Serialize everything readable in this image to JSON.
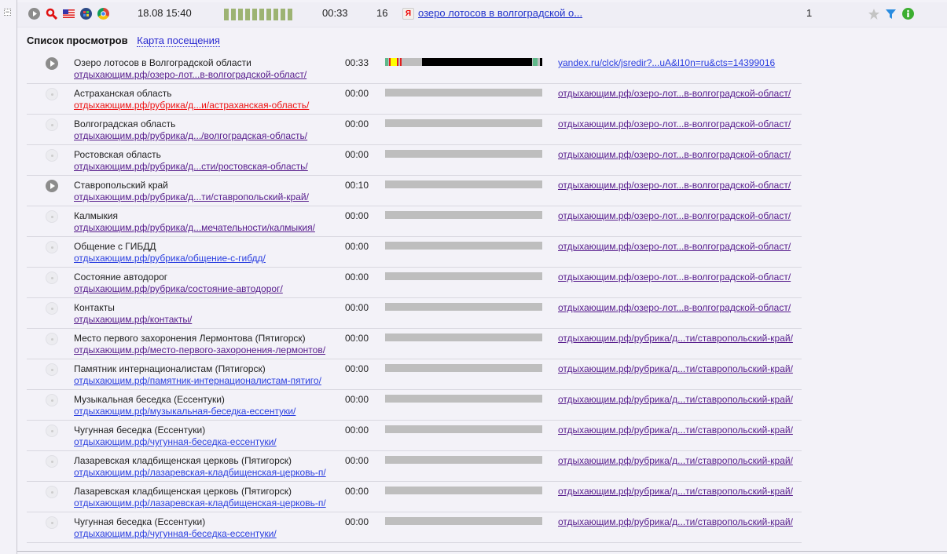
{
  "header": {
    "date": "18.08 15:40",
    "duration": "00:33",
    "pages": "16",
    "entry_title": "озеро лотосов в волгоградской о...",
    "visits": "1",
    "activity_bars": 10,
    "icons": [
      "play-icon",
      "search-icon",
      "us-flag-icon",
      "windows-icon",
      "chrome-icon",
      "yandex-icon",
      "star-icon",
      "filter-icon",
      "info-icon"
    ]
  },
  "tabs": {
    "active": "Список просмотров",
    "other": "Карта посещения"
  },
  "colors": {
    "visited": "#551a8b",
    "unvisited": "#2a3ee0",
    "hover": "#ee1111",
    "bar": "#bebebe"
  },
  "rows": [
    {
      "title": "Озеро лотосов в Волгоградской области",
      "url": "отдыхающим.рф/озеро-лот...в-волгоградской-област/",
      "time": "00:33",
      "ref": "yandex.ru/clck/jsredir?...uA&l10n=ru&cts=14399016",
      "played": true,
      "state": "visited",
      "ref_state": "unvisited",
      "timeline": true
    },
    {
      "title": "Астраханская область",
      "url": "отдыхающим.рф/рубрика/д...и/астраханская-область/",
      "time": "00:00",
      "ref": "отдыхающим.рф/озеро-лот...в-волгоградской-област/",
      "played": false,
      "state": "hover"
    },
    {
      "title": "Волгоградская область",
      "url": "отдыхающим.рф/рубрика/д.../волгоградская-область/",
      "time": "00:00",
      "ref": "отдыхающим.рф/озеро-лот...в-волгоградской-област/",
      "played": false,
      "state": "visited"
    },
    {
      "title": "Ростовская область",
      "url": "отдыхающим.рф/рубрика/д...сти/ростовская-область/",
      "time": "00:00",
      "ref": "отдыхающим.рф/озеро-лот...в-волгоградской-област/",
      "played": false,
      "state": "visited"
    },
    {
      "title": "Ставропольский край",
      "url": "отдыхающим.рф/рубрика/д...ти/ставропольский-край/",
      "time": "00:10",
      "ref": "отдыхающим.рф/озеро-лот...в-волгоградской-област/",
      "played": true,
      "state": "visited"
    },
    {
      "title": "Калмыкия",
      "url": "отдыхающим.рф/рубрика/д...мечательности/калмыкия/",
      "time": "00:00",
      "ref": "отдыхающим.рф/озеро-лот...в-волгоградской-област/",
      "played": false,
      "state": "visited"
    },
    {
      "title": "Общение с ГИБДД",
      "url": "отдыхающим.рф/рубрика/общение-с-гибдд/",
      "time": "00:00",
      "ref": "отдыхающим.рф/озеро-лот...в-волгоградской-област/",
      "played": false,
      "state": "unvisited"
    },
    {
      "title": "Состояние автодорог",
      "url": "отдыхающим.рф/рубрика/состояние-автодорог/",
      "time": "00:00",
      "ref": "отдыхающим.рф/озеро-лот...в-волгоградской-област/",
      "played": false,
      "state": "visited"
    },
    {
      "title": "Контакты",
      "url": "отдыхающим.рф/контакты/",
      "time": "00:00",
      "ref": "отдыхающим.рф/озеро-лот...в-волгоградской-област/",
      "played": false,
      "state": "visited"
    },
    {
      "title": "Место первого захоронения Лермонтова (Пятигорск)",
      "url": "отдыхающим.рф/место-первого-захоронения-лермонтов/",
      "time": "00:00",
      "ref": "отдыхающим.рф/рубрика/д...ти/ставропольский-край/",
      "played": false,
      "state": "visited"
    },
    {
      "title": "Памятник интернационалистам (Пятигорск)",
      "url": "отдыхающим.рф/памятник-интернационалистам-пятиго/",
      "time": "00:00",
      "ref": "отдыхающим.рф/рубрика/д...ти/ставропольский-край/",
      "played": false,
      "state": "unvisited"
    },
    {
      "title": "Музыкальная беседка (Ессентуки)",
      "url": "отдыхающим.рф/музыкальная-беседка-ессентуки/",
      "time": "00:00",
      "ref": "отдыхающим.рф/рубрика/д...ти/ставропольский-край/",
      "played": false,
      "state": "unvisited"
    },
    {
      "title": "Чугунная беседка (Ессентуки)",
      "url": "отдыхающим.рф/чугунная-беседка-ессентуки/",
      "time": "00:00",
      "ref": "отдыхающим.рф/рубрика/д...ти/ставропольский-край/",
      "played": false,
      "state": "unvisited"
    },
    {
      "title": "Лазаревская кладбищенская церковь (Пятигорск)",
      "url": "отдыхающим.рф/лазаревская-кладбищенская-церковь-п/",
      "time": "00:00",
      "ref": "отдыхающим.рф/рубрика/д...ти/ставропольский-край/",
      "played": false,
      "state": "unvisited"
    },
    {
      "title": "Лазаревская кладбищенская церковь (Пятигорск)",
      "url": "отдыхающим.рф/лазаревская-кладбищенская-церковь-п/",
      "time": "00:00",
      "ref": "отдыхающим.рф/рубрика/д...ти/ставропольский-край/",
      "played": false,
      "state": "unvisited"
    },
    {
      "title": "Чугунная беседка (Ессентуки)",
      "url": "отдыхающим.рф/чугунная-беседка-ессентуки/",
      "time": "00:00",
      "ref": "отдыхающим.рф/рубрика/д...ти/ставропольский-край/",
      "played": false,
      "state": "unvisited"
    }
  ]
}
